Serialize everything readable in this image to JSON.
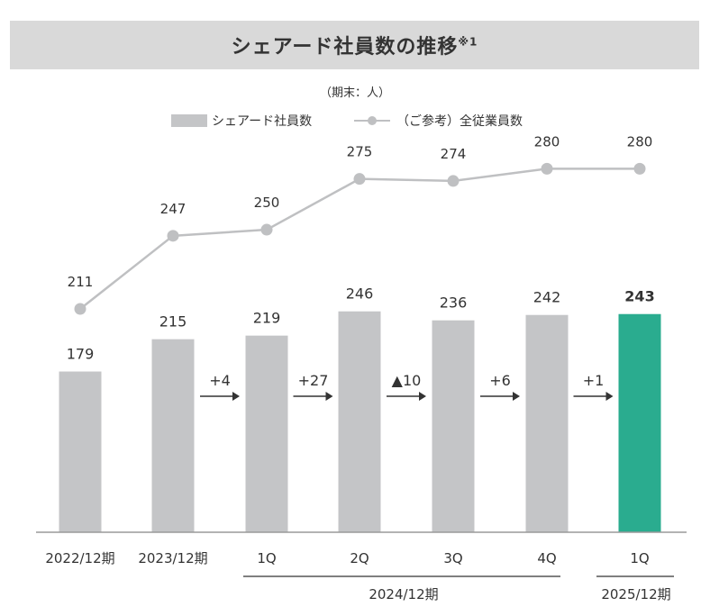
{
  "chart_data": {
    "title": "シェアード社員数の推移",
    "title_note": "※1",
    "unit": "（期末：人）",
    "type": "bar",
    "legend": {
      "bar_label": "シェアード社員数",
      "line_label": "（ご参考）全従業員数"
    },
    "categories": [
      "2022/12期",
      "2023/12期",
      "1Q",
      "2Q",
      "3Q",
      "4Q",
      "1Q"
    ],
    "groups": [
      {
        "label": "2024/12期",
        "from": 2,
        "to": 5
      },
      {
        "label": "2025/12期",
        "from": 6,
        "to": 6
      }
    ],
    "series": [
      {
        "name": "シェアード社員数",
        "type": "bar",
        "values": [
          179,
          215,
          219,
          246,
          236,
          242,
          243
        ],
        "labels": [
          "179",
          "215",
          "219",
          "246",
          "236",
          "242",
          "243"
        ]
      },
      {
        "name": "（ご参考）全従業員数",
        "type": "line",
        "values": [
          211,
          247,
          250,
          275,
          274,
          280,
          280
        ],
        "labels": [
          "211",
          "247",
          "250",
          "275",
          "274",
          "280",
          "280"
        ]
      }
    ],
    "changes": [
      "+4",
      "+27",
      "▲10",
      "+6",
      "+1"
    ],
    "highlight_index": 6,
    "colors": {
      "bar": "#c4c5c7",
      "highlight": "#2aac8f",
      "line": "#bfc0c2",
      "text": "#333333"
    }
  }
}
